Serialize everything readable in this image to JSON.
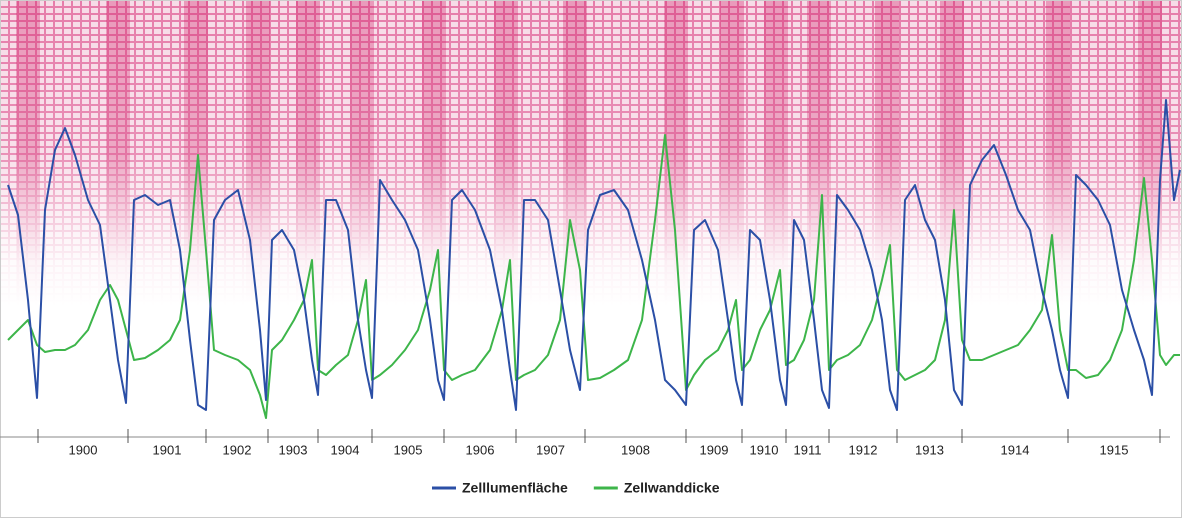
{
  "chart_data": {
    "type": "line",
    "categories": [
      "1900",
      "1901",
      "1902",
      "1903",
      "1904",
      "1905",
      "1906",
      "1907",
      "1908",
      "1909",
      "1910",
      "1911",
      "1912",
      "1913",
      "1914",
      "1915"
    ],
    "year_boundaries": [
      38,
      128,
      206,
      268,
      318,
      372,
      444,
      516,
      585,
      686,
      742,
      786,
      829,
      897,
      962,
      1068,
      1160
    ],
    "xlim": [
      0,
      1182
    ],
    "ylim": [
      0,
      437
    ],
    "x": [
      8,
      18,
      28,
      37,
      45,
      55,
      65,
      75,
      88,
      100,
      110,
      118,
      126,
      134,
      145,
      158,
      170,
      180,
      190,
      198,
      206,
      214,
      225,
      238,
      250,
      260,
      266,
      272,
      282,
      294,
      304,
      312,
      318,
      326,
      336,
      348,
      358,
      366,
      372,
      380,
      392,
      405,
      418,
      430,
      438,
      444,
      452,
      462,
      475,
      490,
      502,
      510,
      516,
      524,
      535,
      548,
      560,
      570,
      580,
      588,
      600,
      614,
      628,
      642,
      655,
      665,
      675,
      686,
      694,
      705,
      718,
      728,
      736,
      742,
      750,
      760,
      770,
      780,
      786,
      794,
      804,
      814,
      822,
      829,
      837,
      848,
      860,
      872,
      882,
      890,
      897,
      905,
      915,
      925,
      935,
      945,
      954,
      962,
      970,
      982,
      994,
      1006,
      1018,
      1030,
      1042,
      1052,
      1060,
      1068,
      1076,
      1086,
      1098,
      1110,
      1122,
      1134,
      1144,
      1152,
      1160,
      1166,
      1174,
      1180
    ],
    "series": [
      {
        "name": "Zelllumenfläche",
        "color": "#2b4fa6",
        "values": [
          252,
          222,
          137,
          39,
          227,
          287,
          309,
          282,
          237,
          212,
          137,
          77,
          34,
          237,
          242,
          232,
          237,
          187,
          97,
          32,
          27,
          217,
          237,
          247,
          197,
          107,
          37,
          197,
          207,
          187,
          137,
          77,
          42,
          237,
          237,
          207,
          117,
          67,
          39,
          257,
          237,
          217,
          187,
          117,
          57,
          37,
          237,
          247,
          227,
          187,
          127,
          67,
          27,
          237,
          237,
          217,
          147,
          87,
          47,
          207,
          242,
          247,
          227,
          177,
          117,
          57,
          47,
          32,
          207,
          217,
          187,
          117,
          57,
          32,
          207,
          197,
          137,
          57,
          32,
          217,
          197,
          117,
          47,
          29,
          242,
          227,
          207,
          167,
          117,
          47,
          27,
          237,
          252,
          217,
          197,
          137,
          47,
          32,
          252,
          277,
          292,
          262,
          227,
          207,
          147,
          107,
          67,
          39,
          262,
          252,
          237,
          212,
          147,
          107,
          77,
          42,
          257,
          337,
          237,
          267
        ]
      },
      {
        "name": "Zellwanddicke",
        "color": "#3db54a",
        "values": [
          97,
          107,
          117,
          92,
          85,
          87,
          87,
          92,
          107,
          137,
          152,
          137,
          107,
          77,
          79,
          87,
          97,
          117,
          187,
          282,
          187,
          87,
          82,
          77,
          67,
          42,
          19,
          87,
          97,
          117,
          137,
          177,
          67,
          62,
          72,
          82,
          117,
          157,
          57,
          62,
          72,
          87,
          107,
          147,
          187,
          67,
          57,
          62,
          67,
          87,
          127,
          177,
          57,
          62,
          67,
          82,
          117,
          217,
          167,
          57,
          59,
          67,
          77,
          117,
          217,
          302,
          207,
          47,
          62,
          77,
          87,
          107,
          137,
          67,
          77,
          107,
          127,
          167,
          72,
          77,
          97,
          137,
          242,
          67,
          77,
          82,
          92,
          117,
          157,
          192,
          67,
          57,
          62,
          67,
          77,
          117,
          227,
          97,
          77,
          77,
          82,
          87,
          92,
          107,
          127,
          202,
          107,
          67,
          67,
          59,
          62,
          77,
          107,
          177,
          259,
          177,
          82,
          72,
          82,
          82
        ]
      }
    ]
  }
}
